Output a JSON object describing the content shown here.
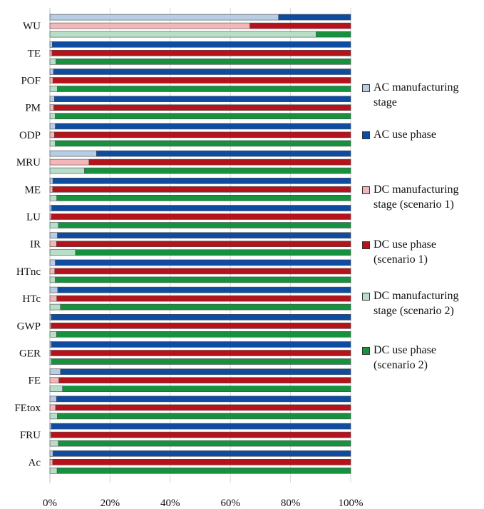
{
  "chart_data": {
    "type": "bar",
    "orientation": "horizontal",
    "stacked": "percent",
    "categories": [
      "WU",
      "TE",
      "POF",
      "PM",
      "ODP",
      "MRU",
      "ME",
      "LU",
      "IR",
      "HTnc",
      "HTc",
      "GWP",
      "GER",
      "FE",
      "FEtox",
      "FRU",
      "Ac"
    ],
    "xticks": [
      "0%",
      "20%",
      "40%",
      "60%",
      "80%",
      "100%"
    ],
    "xlim": [
      0,
      100
    ],
    "grid": true,
    "legend_position": "right",
    "groups": [
      {
        "name": "AC",
        "series": [
          {
            "name": "AC manufacturing stage",
            "color": "#b8cce4",
            "values": [
              76,
              0.8,
              1.2,
              1.5,
              1.8,
              15.5,
              1.0,
              0.6,
              2.5,
              1.8,
              2.6,
              0.5,
              0.5,
              3.5,
              2.2,
              0.5,
              1.0
            ]
          },
          {
            "name": "AC use phase",
            "color": "#0e4ca1",
            "values": [
              24,
              99.2,
              98.8,
              98.5,
              98.2,
              84.5,
              99.0,
              99.4,
              97.5,
              98.2,
              97.4,
              99.5,
              99.5,
              96.5,
              97.8,
              99.5,
              99.0
            ]
          }
        ]
      },
      {
        "name": "DC scenario 1",
        "series": [
          {
            "name": "DC manufacturing stage (scenario 1)",
            "color": "#f4b6b6",
            "values": [
              66.5,
              0.7,
              1.0,
              1.3,
              1.5,
              13.0,
              0.9,
              0.5,
              2.2,
              1.6,
              2.3,
              0.4,
              0.4,
              3.0,
              1.9,
              0.4,
              0.9
            ]
          },
          {
            "name": "DC use phase (scenario 1)",
            "color": "#b5121b",
            "values": [
              33.5,
              99.3,
              99.0,
              98.7,
              98.5,
              87.0,
              99.1,
              99.5,
              97.8,
              98.4,
              97.7,
              99.6,
              99.6,
              97.0,
              98.1,
              99.6,
              99.1
            ]
          }
        ]
      },
      {
        "name": "DC scenario 2",
        "series": [
          {
            "name": "DC manufacturing stage (scenario 2)",
            "color": "#b7dfc8",
            "values": [
              88.5,
              2.0,
              2.5,
              1.8,
              1.8,
              11.5,
              2.3,
              2.8,
              8.5,
              1.8,
              3.5,
              2.2,
              0.6,
              4.2,
              2.5,
              2.8,
              2.4
            ]
          },
          {
            "name": "DC use phase (scenario 2)",
            "color": "#16923e",
            "values": [
              11.5,
              98.0,
              97.5,
              98.2,
              98.2,
              88.5,
              97.7,
              97.2,
              91.5,
              98.2,
              96.5,
              97.8,
              99.4,
              95.8,
              97.5,
              97.2,
              97.6
            ]
          }
        ]
      }
    ]
  },
  "legend": {
    "items": [
      {
        "lines": [
          "AC manufacturing",
          "stage"
        ],
        "color": "#b8cce4"
      },
      {
        "lines": [
          "AC use phase"
        ],
        "color": "#0e4ca1"
      },
      {
        "lines": [
          "DC manufacturing",
          "stage (scenario 1)"
        ],
        "color": "#f4b6b6"
      },
      {
        "lines": [
          "DC use phase",
          "(scenario 1)"
        ],
        "color": "#b5121b"
      },
      {
        "lines": [
          "DC manufacturing",
          "stage (scenario 2)"
        ],
        "color": "#b7dfc8"
      },
      {
        "lines": [
          "DC use phase",
          "(scenario 2)"
        ],
        "color": "#16923e"
      }
    ]
  }
}
